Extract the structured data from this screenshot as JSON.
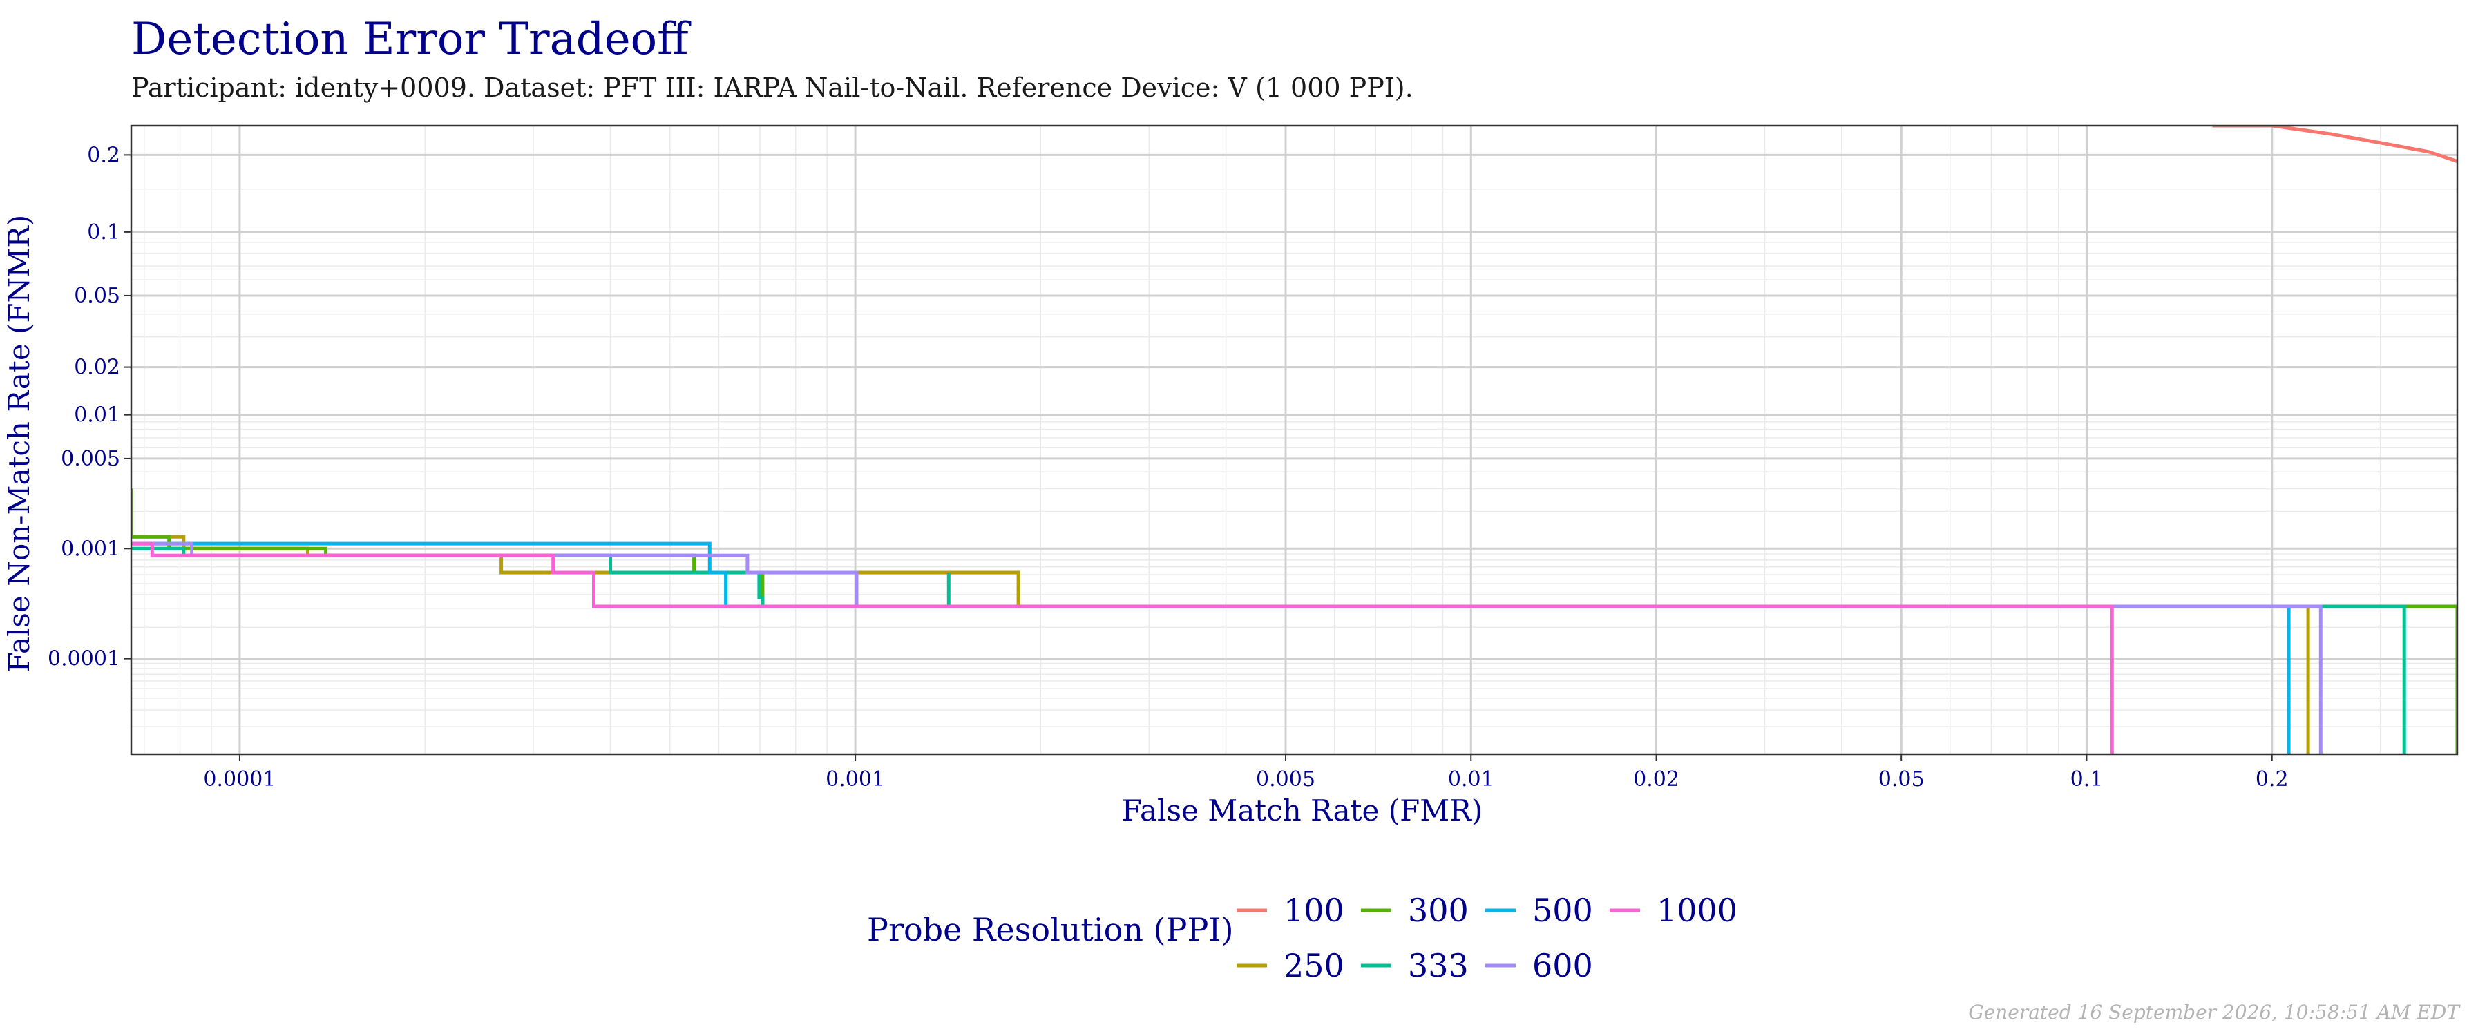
{
  "chart_data": {
    "type": "line",
    "title": "Detection Error Tradeoff",
    "subtitle": "Participant: identy+0009. Dataset: PFT III: IARPA Nail-to-Nail. Reference Device: V (1 000 PPI).",
    "xlabel": "False Match Rate (FMR)",
    "ylabel": "False Non-Match Rate (FNMR)",
    "x_scale": "log",
    "y_scale": "probit",
    "xlim": [
      6.667e-05,
      0.4
    ],
    "ylim": [
      1e-05,
      0.25
    ],
    "x_ticks": [
      {
        "value": 0.0001,
        "label": "0.0001"
      },
      {
        "value": 0.001,
        "label": "0.001"
      },
      {
        "value": 0.005,
        "label": "0.005"
      },
      {
        "value": 0.01,
        "label": "0.01"
      },
      {
        "value": 0.02,
        "label": "0.02"
      },
      {
        "value": 0.05,
        "label": "0.05"
      },
      {
        "value": 0.1,
        "label": "0.1"
      },
      {
        "value": 0.2,
        "label": "0.2"
      }
    ],
    "y_ticks": [
      {
        "value": 0.2,
        "label": "0.2"
      },
      {
        "value": 0.1,
        "label": "0.1"
      },
      {
        "value": 0.05,
        "label": "0.05"
      },
      {
        "value": 0.02,
        "label": "0.02"
      },
      {
        "value": 0.01,
        "label": "0.01"
      },
      {
        "value": 0.005,
        "label": "0.005"
      },
      {
        "value": 0.001,
        "label": "0.001"
      },
      {
        "value": 0.0001,
        "label": "0.0001"
      }
    ],
    "grid": true,
    "legend": {
      "title": "Probe Resolution (PPI)",
      "position": "bottom"
    },
    "series": [
      {
        "name": "100",
        "color": "#F8766D",
        "steps": false,
        "points": [
          [
            0.16,
            0.26
          ],
          [
            0.2,
            0.25
          ],
          [
            0.25,
            0.235
          ],
          [
            0.3,
            0.22
          ],
          [
            0.36,
            0.205
          ],
          [
            0.4,
            0.19
          ]
        ]
      },
      {
        "name": "250",
        "color": "#B79F00",
        "steps": true,
        "points": [
          [
            6.667e-05,
            0.00125
          ],
          [
            8.11e-05,
            0.00125
          ],
          [
            8.11e-05,
            0.001
          ],
          [
            0.000129,
            0.001
          ],
          [
            0.000129,
            0.000875
          ],
          [
            0.000266,
            0.000875
          ],
          [
            0.000266,
            0.000625
          ],
          [
            0.00184,
            0.000625
          ],
          [
            0.00184,
            0.0003125
          ],
          [
            0.229,
            0.0003125
          ],
          [
            0.229,
            1e-05
          ]
        ]
      },
      {
        "name": "300",
        "color": "#53B400",
        "steps": true,
        "points": [
          [
            6.667e-05,
            0.003
          ],
          [
            6.667e-05,
            0.00125
          ],
          [
            7.68e-05,
            0.00125
          ],
          [
            7.68e-05,
            0.001
          ],
          [
            0.000138,
            0.001
          ],
          [
            0.000138,
            0.000875
          ],
          [
            0.000547,
            0.000875
          ],
          [
            0.000547,
            0.000625
          ],
          [
            0.000707,
            0.000625
          ],
          [
            0.000707,
            0.0003125
          ],
          [
            0.4,
            0.0003125
          ],
          [
            0.4,
            1e-05
          ]
        ]
      },
      {
        "name": "333",
        "color": "#00C094",
        "steps": true,
        "points": [
          [
            6.667e-05,
            0.001
          ],
          [
            8.11e-05,
            0.001
          ],
          [
            8.11e-05,
            0.000875
          ],
          [
            0.0004,
            0.000875
          ],
          [
            0.0004,
            0.000625
          ],
          [
            0.000698,
            0.000625
          ],
          [
            0.000698,
            0.000375
          ],
          [
            0.000707,
            0.000375
          ],
          [
            0.000707,
            0.0003125
          ],
          [
            0.001418,
            0.0003125
          ],
          [
            0.001418,
            0.000625
          ],
          [
            0.001418,
            0.0003125
          ],
          [
            0.328,
            0.0003125
          ],
          [
            0.328,
            1e-05
          ]
        ]
      },
      {
        "name": "500",
        "color": "#00B6EB",
        "steps": true,
        "points": [
          [
            6.667e-05,
            0.0011
          ],
          [
            0.00058,
            0.0011
          ],
          [
            0.00058,
            0.000625
          ],
          [
            0.000616,
            0.000625
          ],
          [
            0.000616,
            0.0003125
          ],
          [
            0.213,
            0.0003125
          ],
          [
            0.213,
            1e-05
          ]
        ]
      },
      {
        "name": "600",
        "color": "#A58AFF",
        "steps": true,
        "points": [
          [
            6.667e-05,
            0.0011
          ],
          [
            8.36e-05,
            0.0011
          ],
          [
            8.36e-05,
            0.000875
          ],
          [
            0.000668,
            0.000875
          ],
          [
            0.000668,
            0.000625
          ],
          [
            0.001005,
            0.000625
          ],
          [
            0.001005,
            0.0003125
          ],
          [
            0.24,
            0.0003125
          ],
          [
            0.24,
            1e-05
          ]
        ]
      },
      {
        "name": "1000",
        "color": "#FB61D7",
        "steps": true,
        "points": [
          [
            6.667e-05,
            0.0011
          ],
          [
            7.21e-05,
            0.0011
          ],
          [
            7.21e-05,
            0.000875
          ],
          [
            0.000323,
            0.000875
          ],
          [
            0.000323,
            0.000625
          ],
          [
            0.000376,
            0.000625
          ],
          [
            0.000376,
            0.0003125
          ],
          [
            0.11,
            0.0003125
          ],
          [
            0.11,
            1e-05
          ]
        ]
      }
    ]
  },
  "footer": "Generated 16 September 2026, 10:58:51 AM EDT"
}
